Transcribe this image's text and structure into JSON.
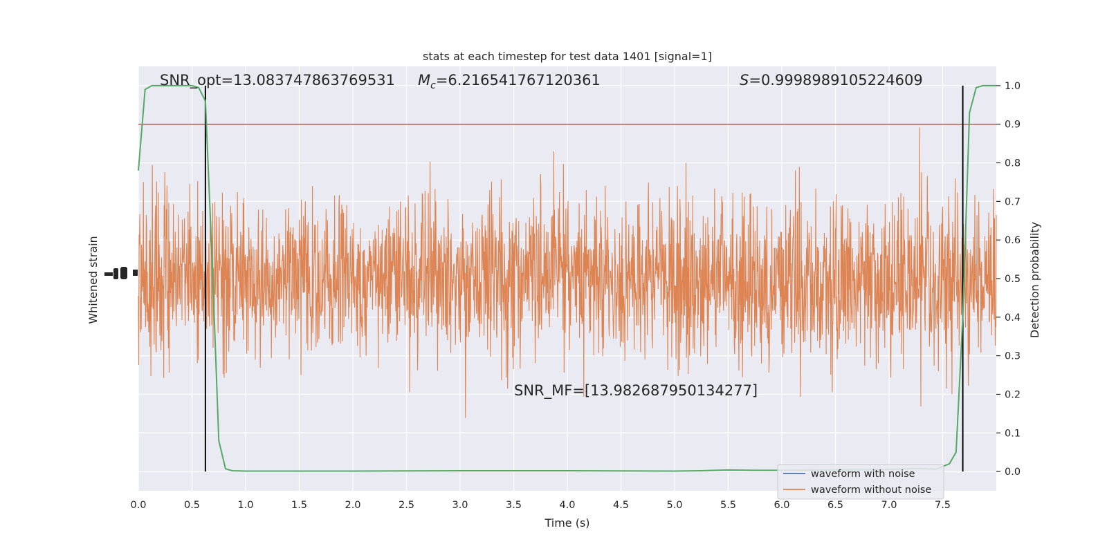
{
  "chart_data": {
    "type": "line",
    "title": "stats at each timestep for test data 1401 [signal=1]",
    "xlabel": "Time (s)",
    "ylabel_left": "Whitened strain",
    "ylabel_right": "Detection probability",
    "xlim": [
      0,
      8
    ],
    "ylim_right": [
      -0.05,
      1.05
    ],
    "x_ticks": [
      0.0,
      0.5,
      1.0,
      1.5,
      2.0,
      2.5,
      3.0,
      3.5,
      4.0,
      4.5,
      5.0,
      5.5,
      6.0,
      6.5,
      7.0,
      7.5
    ],
    "x_tick_labels": [
      "0.0",
      "0.5",
      "1.0",
      "1.5",
      "2.0",
      "2.5",
      "3.0",
      "3.5",
      "4.0",
      "4.5",
      "5.0",
      "5.5",
      "6.0",
      "6.5",
      "7.0",
      "7.5"
    ],
    "y_right_ticks": [
      0.0,
      0.1,
      0.2,
      0.3,
      0.4,
      0.5,
      0.6,
      0.7,
      0.8,
      0.9,
      1.0
    ],
    "y_right_tick_labels": [
      "0.0",
      "0.1",
      "0.2",
      "0.3",
      "0.4",
      "0.5",
      "0.6",
      "0.7",
      "0.8",
      "0.9",
      "1.0"
    ],
    "annotations": {
      "snr_opt": "SNR_opt=13.083747863769531",
      "mc_symbol": "M",
      "mc_sub": "c",
      "mc_value": "=6.216541767120361",
      "s_symbol": "S",
      "s_value": "=0.9998989105224609",
      "snr_mf": "SNR_MF=[13.982687950134277]"
    },
    "threshold": 0.9,
    "vlines_x": [
      0.625,
      7.6875
    ],
    "legend": {
      "placement": "lower-right",
      "entries": [
        "waveform with noise",
        "waveform without noise"
      ]
    },
    "series": [
      {
        "name": "waveform without noise",
        "kind": "noise",
        "center": 0.5,
        "color": "#dd8452"
      },
      {
        "name": "detection probability",
        "color": "#55a868",
        "x": [
          0.0,
          0.0625,
          0.125,
          0.25,
          0.375,
          0.5,
          0.5625,
          0.625,
          0.6875,
          0.75,
          0.8125,
          0.875,
          1.0,
          2.0,
          3.0,
          4.0,
          5.0,
          5.25,
          5.5,
          5.75,
          6.0,
          6.5,
          7.0,
          7.25,
          7.4375,
          7.5625,
          7.625,
          7.6875,
          7.75,
          7.8125,
          7.875,
          7.9375,
          8.0
        ],
        "y": [
          0.78,
          0.99,
          1.0,
          1.0,
          1.0,
          1.0,
          0.995,
          0.96,
          0.55,
          0.08,
          0.007,
          0.002,
          0.001,
          0.001,
          0.002,
          0.002,
          0.001,
          0.002,
          0.004,
          0.003,
          0.003,
          0.004,
          0.005,
          0.008,
          0.006,
          0.02,
          0.05,
          0.4,
          0.93,
          0.995,
          1.0,
          1.0,
          1.0
        ]
      }
    ],
    "colors": {
      "background": "#eaeaf2",
      "grid": "#ffffff",
      "noise_with": "#4c72b0",
      "noise_without": "#dd8452",
      "probability": "#55a868",
      "threshold": "#c44e52",
      "vlines": "#000000"
    }
  }
}
